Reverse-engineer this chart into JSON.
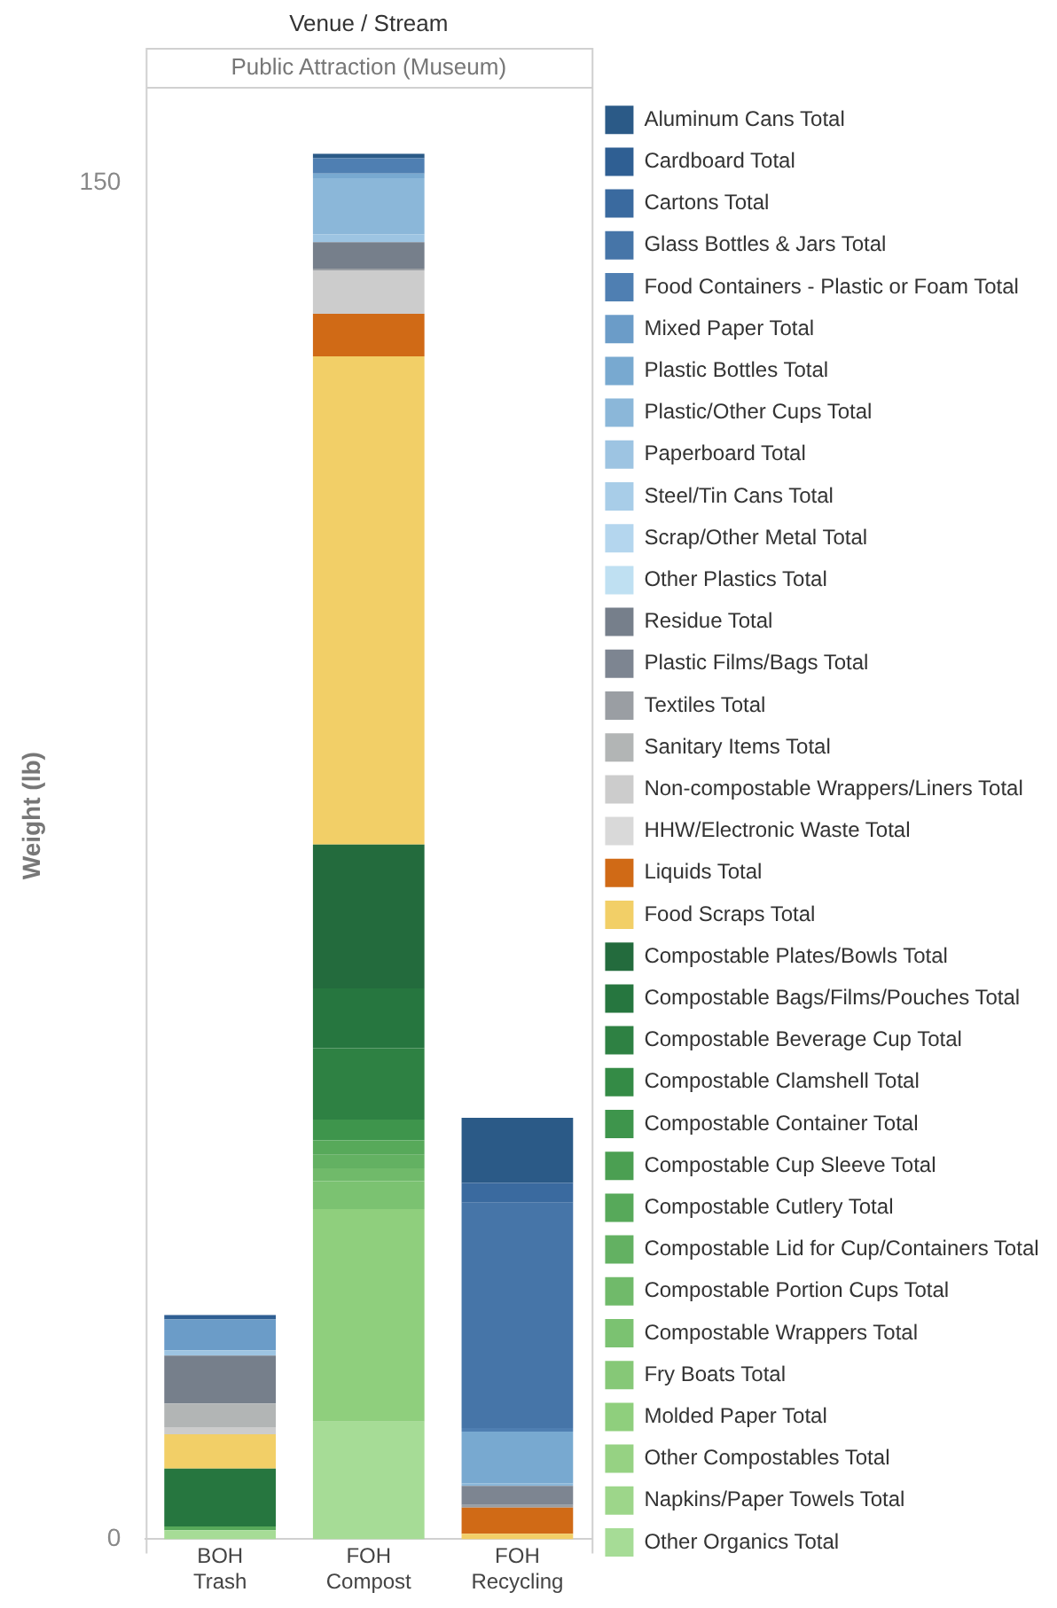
{
  "chart_data": {
    "type": "bar",
    "stacked": true,
    "title": "Venue / Stream",
    "subtitle": "Public Attraction (Museum)",
    "ylabel": "Weight (lb)",
    "categories": [
      "BOH\nTrash",
      "FOH\nCompost",
      "FOH\nRecycling"
    ],
    "ylim": [
      0,
      160
    ],
    "yticks": [
      0,
      150
    ],
    "grid": false,
    "legend": "right",
    "series": [
      {
        "name": "Other Organics Total",
        "color": "#a6dc96",
        "values": [
          1.0,
          13.0,
          null
        ]
      },
      {
        "name": "Napkins/Paper Towels Total",
        "color": "#9dd68a",
        "values": [
          null,
          null,
          null
        ]
      },
      {
        "name": "Other Compostables Total",
        "color": "#96d283",
        "values": [
          null,
          null,
          null
        ]
      },
      {
        "name": "Molded Paper Total",
        "color": "#8fcf7d",
        "values": [
          null,
          23.5,
          null
        ]
      },
      {
        "name": "Fry Boats Total",
        "color": "#86c877",
        "values": [
          null,
          null,
          null
        ]
      },
      {
        "name": "Compostable Wrappers Total",
        "color": "#7bc271",
        "values": [
          null,
          3.1,
          null
        ]
      },
      {
        "name": "Compostable Portion Cups Total",
        "color": "#70ba6a",
        "values": [
          null,
          1.4,
          null
        ]
      },
      {
        "name": "Compostable Lid for Cup/Containers Total",
        "color": "#63b162",
        "values": [
          null,
          1.5,
          null
        ]
      },
      {
        "name": "Compostable Cutlery Total",
        "color": "#57a95a",
        "values": [
          0.4,
          1.6,
          null
        ]
      },
      {
        "name": "Compostable Cup Sleeve Total",
        "color": "#4b9f52",
        "values": [
          null,
          null,
          null
        ]
      },
      {
        "name": "Compostable Container Total",
        "color": "#3e954c",
        "values": [
          null,
          2.3,
          null
        ]
      },
      {
        "name": "Compostable Clamshell Total",
        "color": "#348b46",
        "values": [
          null,
          null,
          null
        ]
      },
      {
        "name": "Compostable Beverage Cup Total",
        "color": "#2e8143",
        "values": [
          null,
          7.9,
          null
        ]
      },
      {
        "name": "Compostable Bags/Films/Pouches Total",
        "color": "#26763f",
        "values": [
          6.4,
          6.6,
          null
        ]
      },
      {
        "name": "Compostable Plates/Bowls Total",
        "color": "#236b3d",
        "values": [
          null,
          15.9,
          null
        ]
      },
      {
        "name": "Food Scraps Total",
        "color": "#f2cf67",
        "values": [
          3.8,
          54.0,
          0.6
        ]
      },
      {
        "name": "Liquids Total",
        "color": "#d06a16",
        "values": [
          null,
          4.7,
          2.9
        ]
      },
      {
        "name": "HHW/Electronic Waste Total",
        "color": "#d9d9d9",
        "values": [
          null,
          null,
          null
        ]
      },
      {
        "name": "Non-compostable Wrappers/Liners Total",
        "color": "#cccccc",
        "values": [
          0.8,
          4.8,
          null
        ]
      },
      {
        "name": "Sanitary Items Total",
        "color": "#b2b5b5",
        "values": [
          2.6,
          null,
          null
        ]
      },
      {
        "name": "Textiles Total",
        "color": "#9a9ea3",
        "values": [
          null,
          0.2,
          0.3
        ]
      },
      {
        "name": "Plastic Films/Bags Total",
        "color": "#7d8591",
        "values": [
          null,
          null,
          2.1
        ]
      },
      {
        "name": "Residue Total",
        "color": "#767f8b",
        "values": [
          5.3,
          2.9,
          null
        ]
      },
      {
        "name": "Other Plastics Total",
        "color": "#bfe0f2",
        "values": [
          null,
          null,
          null
        ]
      },
      {
        "name": "Scrap/Other Metal Total",
        "color": "#b4d6ee",
        "values": [
          null,
          null,
          null
        ]
      },
      {
        "name": "Steel/Tin Cans Total",
        "color": "#a8cde8",
        "values": [
          null,
          null,
          null
        ]
      },
      {
        "name": "Paperboard Total",
        "color": "#9dc4e2",
        "values": [
          0.6,
          0.9,
          null
        ]
      },
      {
        "name": "Plastic/Other Cups Total",
        "color": "#8bb7d9",
        "values": [
          null,
          6.2,
          0.3
        ]
      },
      {
        "name": "Plastic Bottles Total",
        "color": "#78a9d0",
        "values": [
          null,
          0.5,
          5.7
        ]
      },
      {
        "name": "Mixed Paper Total",
        "color": "#6b9cc8",
        "values": [
          3.4,
          null,
          null
        ]
      },
      {
        "name": "Food Containers - Plastic or Foam Total",
        "color": "#4f7fb2",
        "values": [
          null,
          1.7,
          0.4
        ]
      },
      {
        "name": "Glass Bottles & Jars Total",
        "color": "#4675a8",
        "values": [
          null,
          null,
          24.9
        ]
      },
      {
        "name": "Cartons Total",
        "color": "#3a6a9f",
        "values": [
          null,
          null,
          2.2
        ]
      },
      {
        "name": "Cardboard Total",
        "color": "#2f5f93",
        "values": [
          0.5,
          null,
          null
        ]
      },
      {
        "name": "Aluminum Cans Total",
        "color": "#2b5a87",
        "values": [
          null,
          0.5,
          7.2
        ]
      }
    ]
  }
}
